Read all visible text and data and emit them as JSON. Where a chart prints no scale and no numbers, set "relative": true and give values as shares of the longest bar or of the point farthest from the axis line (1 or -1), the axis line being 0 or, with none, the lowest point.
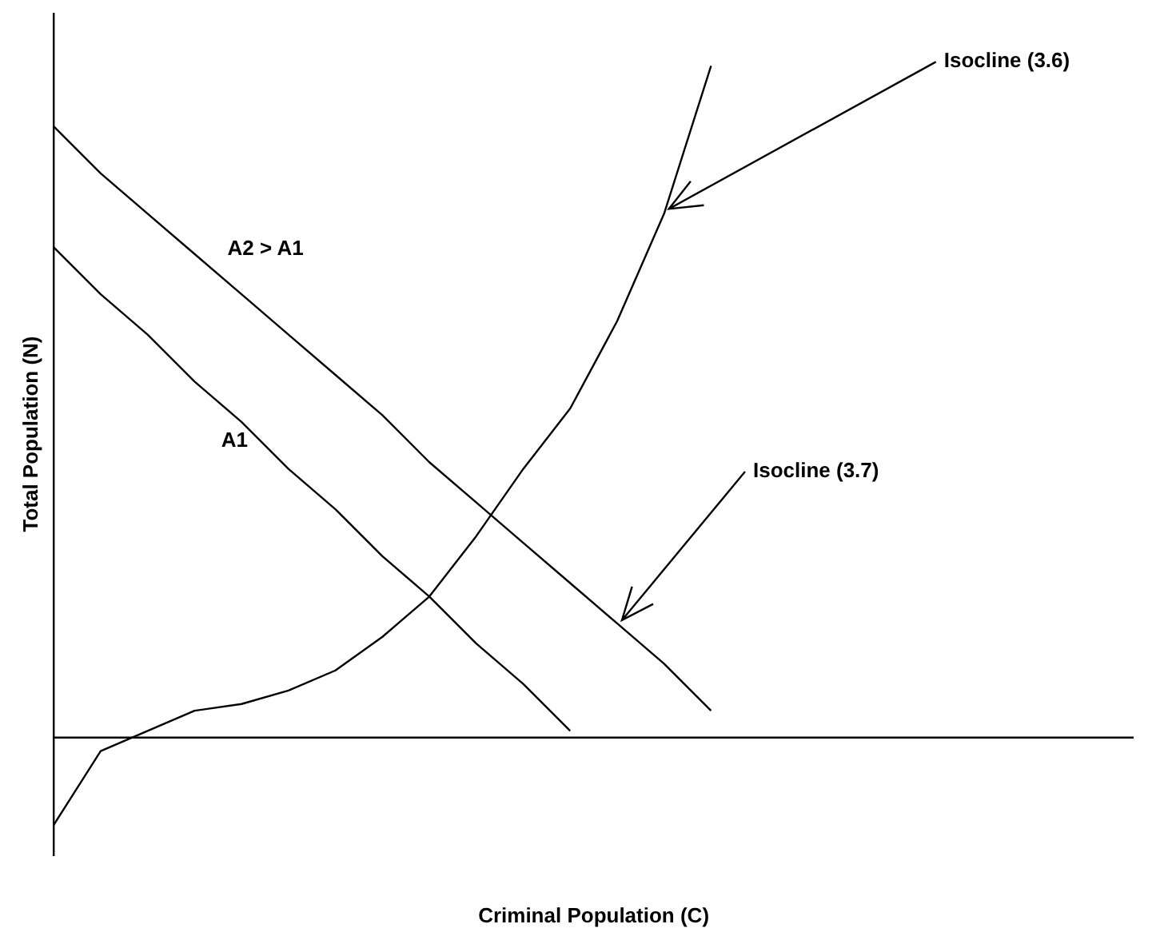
{
  "chart_data": {
    "type": "line",
    "relative": true,
    "xlabel": "Criminal Population (C)",
    "ylabel": "Total Population (N)",
    "categories": [
      null,
      null,
      null,
      null,
      null,
      null,
      null,
      null,
      null,
      null,
      null,
      null,
      null,
      null,
      null,
      null,
      null,
      null,
      null,
      null,
      null,
      null,
      null,
      null
    ],
    "series": [
      {
        "name": "Isocline (3.6)",
        "color": "#000000",
        "values": [
          -0.13,
          -0.02,
          0.01,
          0.04,
          0.05,
          0.07,
          0.1,
          0.15,
          0.21,
          0.3,
          0.4,
          0.49,
          0.62,
          0.78,
          1,
          null,
          null,
          null,
          null,
          null,
          null,
          null,
          null,
          null
        ]
      },
      {
        "name": "A1",
        "color": "#000000",
        "values": [
          0.73,
          0.66,
          0.6,
          0.53,
          0.47,
          0.4,
          0.34,
          0.27,
          0.21,
          0.14,
          0.08,
          0.01,
          null,
          null,
          null,
          null,
          null,
          null,
          null,
          null,
          null,
          null,
          null,
          null
        ]
      },
      {
        "name": "A2 > A1",
        "color": "#000000",
        "values": [
          0.91,
          0.84,
          0.78,
          0.72,
          0.66,
          0.6,
          0.54,
          0.48,
          0.41,
          0.35,
          0.29,
          0.23,
          0.17,
          0.11,
          0.04,
          null,
          null,
          null,
          null,
          null,
          null,
          null,
          null,
          null
        ]
      }
    ],
    "annotations": [
      "Isocline (3.7)"
    ],
    "grid": false,
    "legend": false,
    "marker": "none",
    "line_style": "solid"
  }
}
